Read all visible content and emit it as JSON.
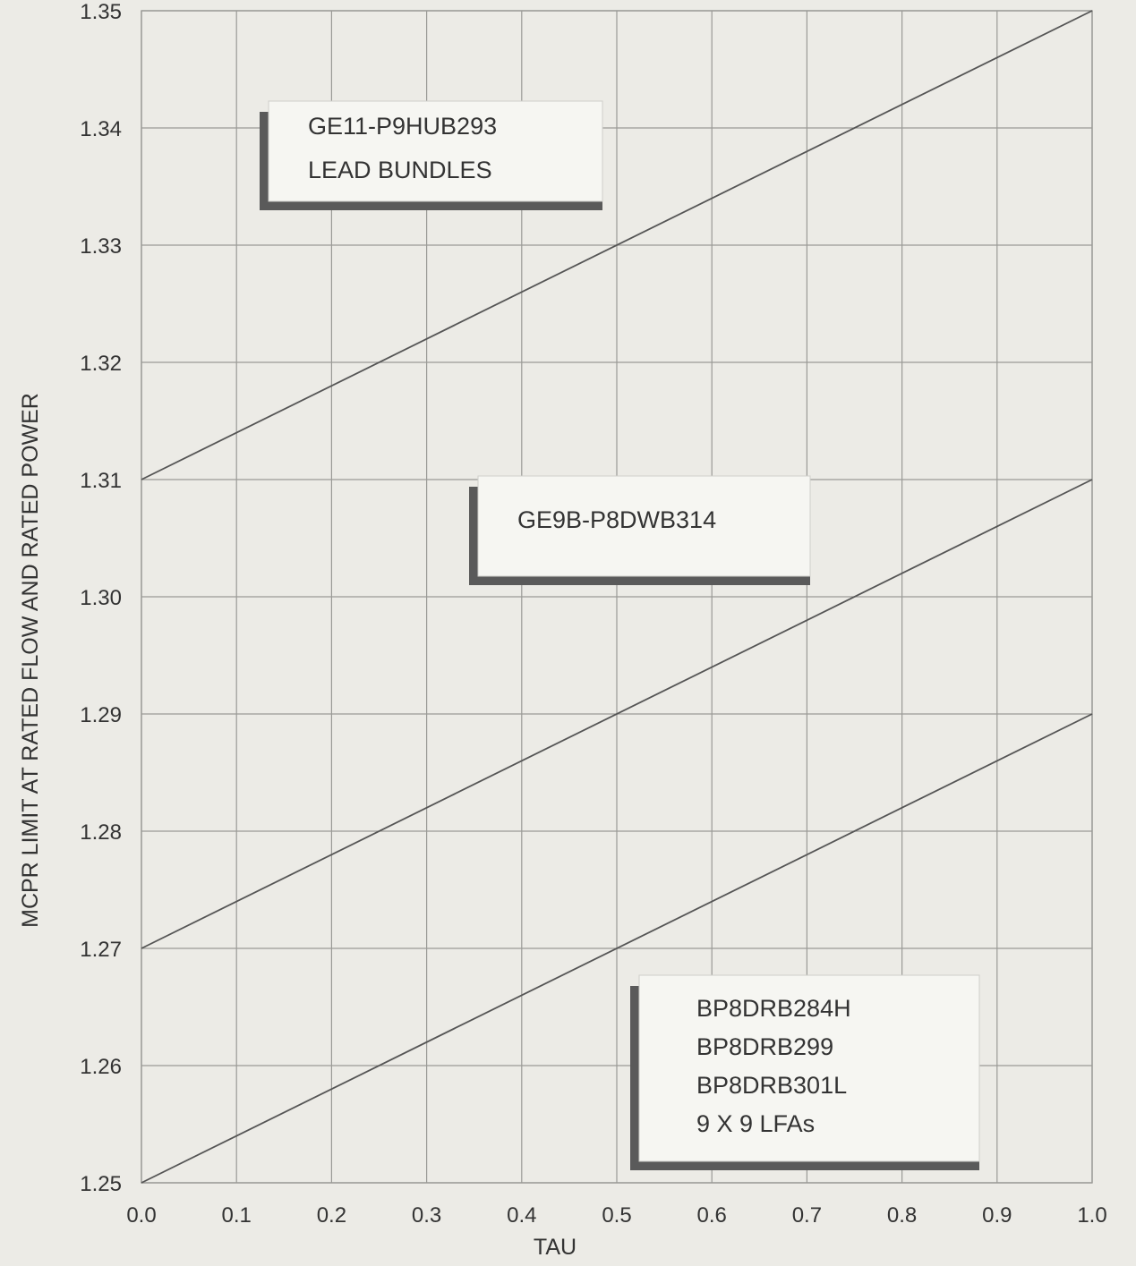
{
  "chart_data": {
    "type": "line",
    "xlabel": "TAU",
    "ylabel": "MCPR LIMIT AT RATED FLOW AND RATED POWER",
    "xlim": [
      0.0,
      1.0
    ],
    "ylim": [
      1.25,
      1.35
    ],
    "x_ticks": [
      "0.0",
      "0.1",
      "0.2",
      "0.3",
      "0.4",
      "0.5",
      "0.6",
      "0.7",
      "0.8",
      "0.9",
      "1.0"
    ],
    "y_ticks": [
      "1.25",
      "1.26",
      "1.27",
      "1.28",
      "1.29",
      "1.30",
      "1.31",
      "1.32",
      "1.33",
      "1.34",
      "1.35"
    ],
    "grid": true,
    "series": [
      {
        "x": [
          0.0,
          1.0
        ],
        "values": [
          1.31,
          1.35
        ]
      },
      {
        "x": [
          0.0,
          1.0
        ],
        "values": [
          1.27,
          1.31
        ]
      },
      {
        "x": [
          0.0,
          1.0
        ],
        "values": [
          1.25,
          1.29
        ]
      }
    ],
    "annotations": [
      {
        "lines": [
          "GE11-P9HUB293",
          "LEAD BUNDLES"
        ]
      },
      {
        "lines": [
          "GE9B-P8DWB314"
        ]
      },
      {
        "lines": [
          "BP8DRB284H",
          "BP8DRB299",
          "BP8DRB301L",
          "9 X 9 LFAs"
        ]
      }
    ]
  },
  "colors": {
    "grid": "#9a9a96",
    "line": "#555555",
    "box_fill": "#f6f6f2",
    "box_shadow": "#5a5a5a"
  }
}
